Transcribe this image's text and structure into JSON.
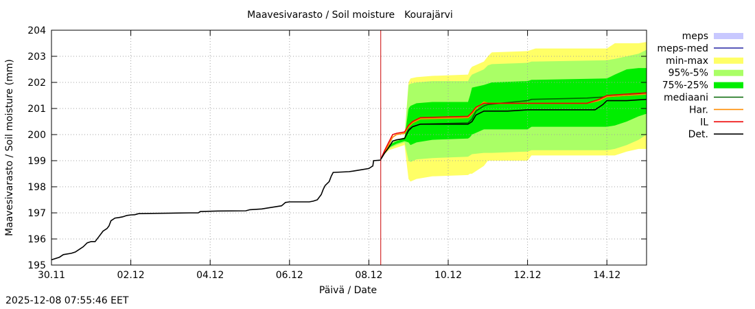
{
  "timestamp": "2025-12-08 07:55:46 EET",
  "chart_data": {
    "type": "line",
    "title": "Maavesivarasto / Soil moisture",
    "location": "Kourajärvi",
    "xlabel": "Päivä / Date",
    "ylabel": "Maavesivarasto / Soil moisture (mm)",
    "x_unit": "days since 30.11",
    "xlim": [
      0,
      15
    ],
    "ylim": [
      195,
      204
    ],
    "yticks": [
      195,
      196,
      197,
      198,
      199,
      200,
      201,
      202,
      203,
      204
    ],
    "xticks": [
      {
        "x": 0,
        "label": "30.11"
      },
      {
        "x": 2,
        "label": "02.12"
      },
      {
        "x": 4,
        "label": "04.12"
      },
      {
        "x": 6,
        "label": "06.12"
      },
      {
        "x": 8,
        "label": "08.12"
      },
      {
        "x": 10,
        "label": "10.12"
      },
      {
        "x": 12,
        "label": "12.12"
      },
      {
        "x": 14,
        "label": "14.12"
      }
    ],
    "grid": true,
    "forecast_start_x": 8.3,
    "colors": {
      "minmax": "#ffff66",
      "p95_5": "#aaff66",
      "p75_25": "#00ee00",
      "mediaani": "#006400",
      "har": "#ff8c00",
      "il": "#ee0000",
      "det": "#000000",
      "meps": "#c8c8ff",
      "meps_med": "#3333aa",
      "forecast_line": "#cc0000",
      "grid": "#a0a0a0"
    },
    "legend": [
      {
        "label": "meps",
        "style": "fill",
        "key": "meps"
      },
      {
        "label": "meps-med",
        "style": "line",
        "key": "meps_med"
      },
      {
        "label": "min-max",
        "style": "fill",
        "key": "minmax"
      },
      {
        "label": "95%-5%",
        "style": "fill",
        "key": "p95_5"
      },
      {
        "label": "75%-25%",
        "style": "fill",
        "key": "p75_25"
      },
      {
        "label": "mediaani",
        "style": "line",
        "key": "mediaani"
      },
      {
        "label": "Har.",
        "style": "line",
        "key": "har"
      },
      {
        "label": "IL",
        "style": "line",
        "key": "il"
      },
      {
        "label": "Det.",
        "style": "line",
        "key": "det"
      }
    ],
    "observed": [
      [
        0.0,
        195.2
      ],
      [
        0.2,
        195.3
      ],
      [
        0.3,
        195.4
      ],
      [
        0.5,
        195.45
      ],
      [
        0.6,
        195.5
      ],
      [
        0.7,
        195.6
      ],
      [
        0.8,
        195.7
      ],
      [
        0.9,
        195.85
      ],
      [
        1.0,
        195.9
      ],
      [
        1.1,
        195.9
      ],
      [
        1.2,
        196.1
      ],
      [
        1.3,
        196.3
      ],
      [
        1.4,
        196.4
      ],
      [
        1.45,
        196.5
      ],
      [
        1.5,
        196.7
      ],
      [
        1.6,
        196.8
      ],
      [
        1.7,
        196.82
      ],
      [
        1.8,
        196.85
      ],
      [
        1.9,
        196.9
      ],
      [
        2.0,
        196.92
      ],
      [
        2.1,
        196.93
      ],
      [
        2.2,
        196.97
      ],
      [
        2.5,
        196.98
      ],
      [
        3.0,
        196.99
      ],
      [
        3.5,
        197.0
      ],
      [
        3.7,
        197.0
      ],
      [
        3.75,
        197.05
      ],
      [
        4.2,
        197.07
      ],
      [
        4.9,
        197.08
      ],
      [
        5.0,
        197.12
      ],
      [
        5.3,
        197.15
      ],
      [
        5.5,
        197.2
      ],
      [
        5.8,
        197.27
      ],
      [
        5.9,
        197.4
      ],
      [
        6.0,
        197.42
      ],
      [
        6.5,
        197.42
      ],
      [
        6.6,
        197.45
      ],
      [
        6.7,
        197.5
      ],
      [
        6.8,
        197.7
      ],
      [
        6.85,
        197.9
      ],
      [
        6.9,
        198.05
      ],
      [
        7.0,
        198.2
      ],
      [
        7.05,
        198.4
      ],
      [
        7.1,
        198.55
      ],
      [
        7.5,
        198.58
      ],
      [
        7.6,
        198.6
      ],
      [
        7.8,
        198.65
      ],
      [
        8.0,
        198.7
      ],
      [
        8.05,
        198.75
      ],
      [
        8.1,
        198.8
      ],
      [
        8.12,
        199.0
      ],
      [
        8.3,
        199.02
      ]
    ],
    "envelopes": {
      "minmax": {
        "x": [
          8.3,
          8.5,
          8.7,
          8.9,
          9.0,
          9.05,
          9.2,
          9.6,
          10.5,
          10.55,
          10.6,
          10.9,
          11.0,
          11.1,
          12.0,
          12.1,
          12.2,
          14.0,
          14.2,
          14.5,
          14.8,
          15.0
        ],
        "upper": [
          199.1,
          199.6,
          199.8,
          199.9,
          202.0,
          202.15,
          202.2,
          202.25,
          202.3,
          202.5,
          202.6,
          202.8,
          203.0,
          203.15,
          203.2,
          203.25,
          203.3,
          203.3,
          203.5,
          203.5,
          203.5,
          203.55
        ],
        "lower": [
          199.1,
          199.4,
          199.5,
          199.6,
          198.3,
          198.2,
          198.3,
          198.4,
          198.45,
          198.5,
          198.5,
          198.8,
          199.0,
          199.0,
          199.0,
          199.2,
          199.2,
          199.2,
          199.2,
          199.35,
          199.45,
          199.45
        ]
      },
      "p95_5": {
        "x": [
          8.3,
          8.5,
          8.7,
          8.9,
          9.0,
          9.05,
          9.2,
          9.6,
          10.5,
          10.55,
          10.6,
          10.9,
          11.0,
          11.1,
          12.0,
          12.1,
          12.2,
          14.0,
          14.2,
          14.5,
          14.8,
          15.0
        ],
        "upper": [
          199.1,
          199.6,
          199.8,
          199.9,
          201.9,
          201.95,
          202.0,
          202.05,
          202.05,
          202.2,
          202.3,
          202.5,
          202.65,
          202.7,
          202.75,
          202.8,
          202.8,
          202.85,
          202.9,
          203.0,
          203.1,
          203.25
        ],
        "lower": [
          199.1,
          199.45,
          199.6,
          199.7,
          199.0,
          198.95,
          199.05,
          199.1,
          199.15,
          199.2,
          199.25,
          199.3,
          199.3,
          199.3,
          199.35,
          199.4,
          199.4,
          199.4,
          199.45,
          199.6,
          199.8,
          200.0
        ]
      },
      "p75_25": {
        "x": [
          8.3,
          8.5,
          8.7,
          8.9,
          9.0,
          9.05,
          9.2,
          9.6,
          10.5,
          10.55,
          10.6,
          10.9,
          11.0,
          11.1,
          12.0,
          12.1,
          12.2,
          14.0,
          14.2,
          14.5,
          14.8,
          15.0
        ],
        "upper": [
          199.1,
          199.6,
          199.75,
          199.85,
          201.0,
          201.1,
          201.2,
          201.25,
          201.25,
          201.5,
          201.8,
          201.9,
          201.95,
          202.0,
          202.05,
          202.1,
          202.1,
          202.15,
          202.3,
          202.5,
          202.55,
          202.55
        ],
        "lower": [
          199.1,
          199.5,
          199.65,
          199.75,
          199.7,
          199.6,
          199.7,
          199.8,
          199.85,
          199.9,
          200.0,
          200.2,
          200.2,
          200.2,
          200.2,
          200.3,
          200.3,
          200.3,
          200.35,
          200.5,
          200.7,
          200.8
        ]
      }
    },
    "series": [
      {
        "name": "mediaani",
        "key": "mediaani",
        "x": [
          8.3,
          8.4,
          8.5,
          8.6,
          8.7,
          8.9,
          9.0,
          9.1,
          9.3,
          10.5,
          10.6,
          10.7,
          10.9,
          11.0,
          11.3,
          12.0,
          12.1,
          13.5,
          14.0,
          14.5,
          15.0
        ],
        "y": [
          199.05,
          199.3,
          199.5,
          199.75,
          199.8,
          199.85,
          200.2,
          200.3,
          200.4,
          200.45,
          200.6,
          200.9,
          201.1,
          201.15,
          201.2,
          201.3,
          201.35,
          201.4,
          201.45,
          201.5,
          201.6
        ]
      },
      {
        "name": "Har.",
        "key": "har",
        "x": [
          8.3,
          8.4,
          8.5,
          8.6,
          8.7,
          8.9,
          9.0,
          9.1,
          9.3,
          10.5,
          10.6,
          10.7,
          10.9,
          11.0,
          11.3,
          12.0,
          12.1,
          13.5,
          13.8,
          14.0,
          14.5,
          15.0
        ],
        "y": [
          199.05,
          199.35,
          199.6,
          199.9,
          200.0,
          200.05,
          200.3,
          200.45,
          200.6,
          200.65,
          200.8,
          201.0,
          201.25,
          201.2,
          201.2,
          201.2,
          201.2,
          201.2,
          201.3,
          201.45,
          201.5,
          201.55
        ]
      },
      {
        "name": "IL",
        "key": "il",
        "x": [
          8.3,
          8.4,
          8.5,
          8.6,
          8.7,
          8.9,
          9.0,
          9.1,
          9.3,
          10.5,
          10.6,
          10.7,
          10.9,
          11.0,
          11.3,
          12.0,
          12.1,
          13.5,
          13.8,
          14.0,
          14.5,
          15.0
        ],
        "y": [
          199.05,
          199.4,
          199.7,
          200.0,
          200.05,
          200.1,
          200.35,
          200.5,
          200.65,
          200.7,
          200.85,
          201.05,
          201.2,
          201.2,
          201.2,
          201.2,
          201.2,
          201.2,
          201.35,
          201.5,
          201.55,
          201.6
        ]
      },
      {
        "name": "Det.",
        "key": "det",
        "x": [
          8.3,
          8.4,
          8.5,
          8.6,
          8.7,
          8.9,
          9.0,
          9.1,
          9.3,
          10.5,
          10.6,
          10.7,
          10.9,
          11.0,
          11.5,
          12.0,
          13.0,
          13.7,
          13.9,
          14.0,
          14.5,
          15.0
        ],
        "y": [
          199.05,
          199.3,
          199.5,
          199.75,
          199.8,
          199.85,
          200.15,
          200.3,
          200.4,
          200.4,
          200.5,
          200.75,
          200.9,
          200.9,
          200.9,
          200.95,
          200.95,
          200.95,
          201.15,
          201.3,
          201.3,
          201.35
        ]
      }
    ]
  }
}
